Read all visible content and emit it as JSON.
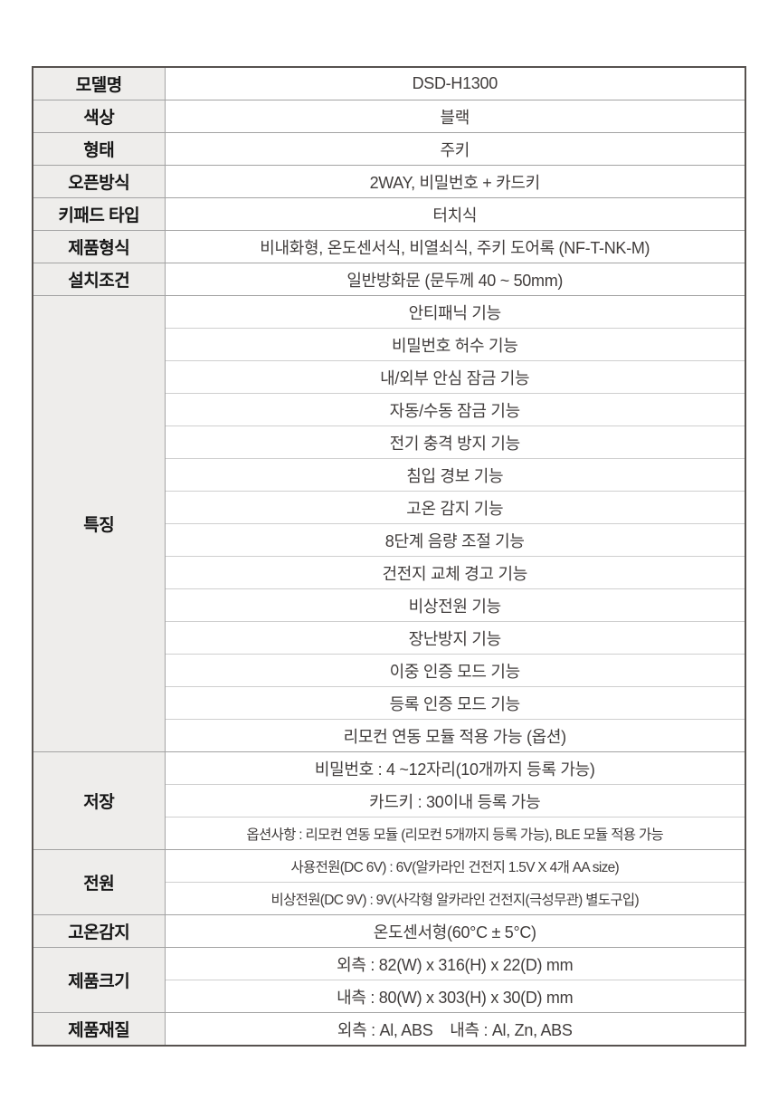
{
  "colors": {
    "label_cell_bg": "#EEEDEB",
    "outer_border": "#57524F",
    "section_divider": "#A3A3A3",
    "inner_divider": "#CFCFCF",
    "label_text": "#161616",
    "value_text": "#413D3C"
  },
  "table": {
    "sections": [
      {
        "label": "모델명",
        "rows": [
          "DSD-H1300"
        ]
      },
      {
        "label": "색상",
        "rows": [
          "블랙"
        ]
      },
      {
        "label": "형태",
        "rows": [
          "주키"
        ]
      },
      {
        "label": "오픈방식",
        "rows": [
          "2WAY, 비밀번호 + 카드키"
        ]
      },
      {
        "label": "키패드 타입",
        "rows": [
          "터치식"
        ]
      },
      {
        "label": "제품형식",
        "rows": [
          "비내화형, 온도센서식, 비열쇠식, 주키 도어록 (NF-T-NK-M)"
        ]
      },
      {
        "label": "설치조건",
        "rows": [
          "일반방화문 (문두께 40 ~ 50mm)"
        ]
      },
      {
        "label": "특징",
        "rows": [
          "안티패닉 기능",
          "비밀번호 허수 기능",
          "내/외부 안심 잠금 기능",
          "자동/수동 잠금 기능",
          "전기 충격 방지 기능",
          "침입 경보 기능",
          "고온 감지 기능",
          "8단계 음량 조절 기능",
          "건전지 교체 경고 기능",
          "비상전원 기능",
          "장난방지 기능",
          "이중 인증 모드 기능",
          "등록 인증 모드 기능",
          "리모컨 연동 모듈 적용 가능 (옵션)"
        ]
      },
      {
        "label": "저장",
        "rows": [
          "비밀번호 : 4 ~12자리(10개까지 등록 가능)",
          "카드키 : 30이내 등록 가능",
          "옵션사항 : 리모컨 연동 모듈 (리모컨 5개까지 등록 가능), BLE 모듈 적용 가능"
        ]
      },
      {
        "label": "전원",
        "rows": [
          "사용전원(DC 6V) : 6V(알카라인 건전지 1.5V X 4개 AA size)",
          "비상전원(DC 9V) : 9V(사각형 알카라인 건전지(극성무관) 별도구입)"
        ]
      },
      {
        "label": "고온감지",
        "rows": [
          "온도센서형(60°C ± 5°C)"
        ]
      },
      {
        "label": "제품크기",
        "rows": [
          "외측 : 82(W) x 316(H) x 22(D) mm",
          "내측 : 80(W) x 303(H) x 30(D) mm"
        ]
      },
      {
        "label": "제품재질",
        "rows": [
          "외측 : Al, ABS    내측 : Al, Zn, ABS"
        ]
      }
    ]
  }
}
